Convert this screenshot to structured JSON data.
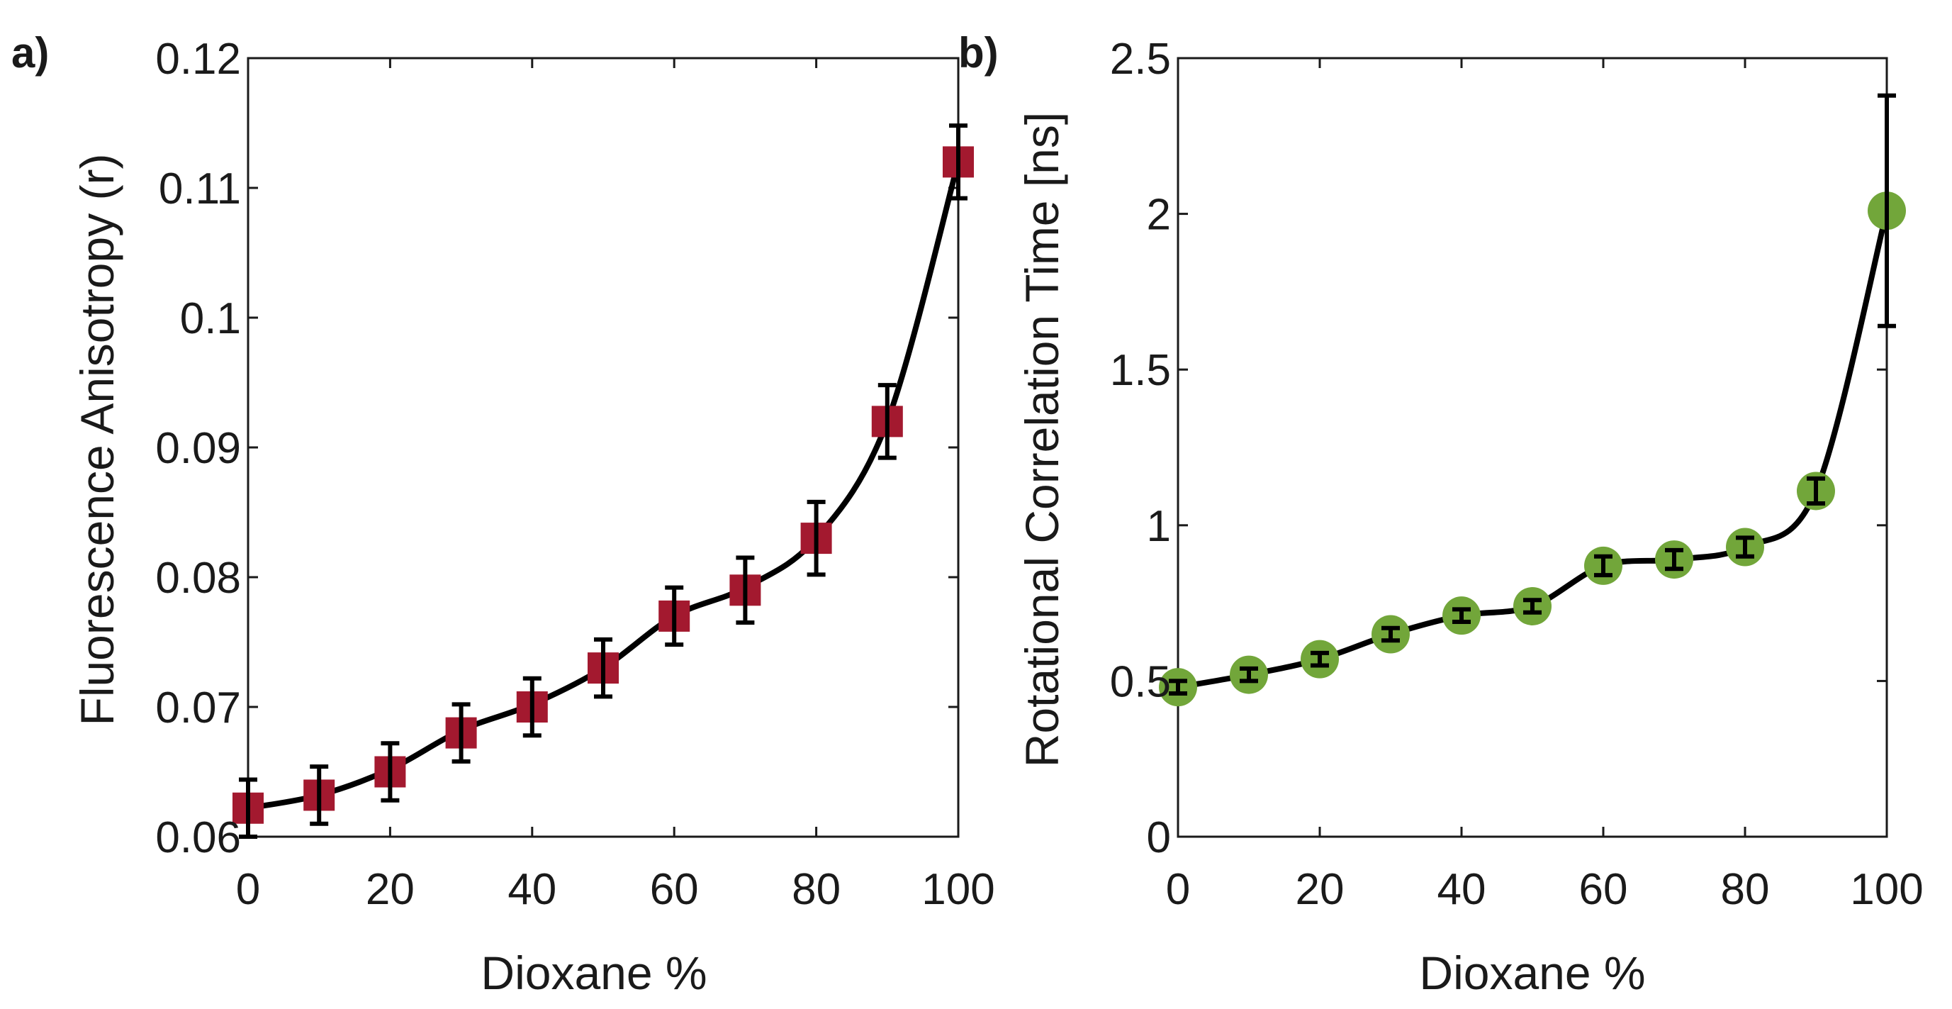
{
  "chart_data": [
    {
      "type": "scatter",
      "panel_label": "a)",
      "title": "",
      "xlabel": "Dioxane %",
      "ylabel": "Fluorescence Anisotropy (r)",
      "xlim": [
        0,
        100
      ],
      "ylim": [
        0.06,
        0.12
      ],
      "x_ticks": [
        0,
        20,
        40,
        60,
        80,
        100
      ],
      "x_tick_labels": [
        "0",
        "20",
        "40",
        "60",
        "80",
        "100"
      ],
      "y_ticks": [
        0.06,
        0.07,
        0.08,
        0.09,
        0.1,
        0.11,
        0.12
      ],
      "y_tick_labels": [
        "0.06",
        "0.07",
        "0.08",
        "0.09",
        "0.1",
        "0.11",
        "0.12"
      ],
      "marker": "square",
      "marker_color": "#a3192f",
      "grid": false,
      "series": [
        {
          "name": "Anisotropy",
          "x": [
            0,
            10,
            20,
            30,
            40,
            50,
            60,
            70,
            80,
            90,
            100
          ],
          "values": [
            0.0622,
            0.0632,
            0.065,
            0.068,
            0.07,
            0.073,
            0.077,
            0.079,
            0.083,
            0.092,
            0.112
          ],
          "error": [
            0.0022,
            0.0022,
            0.0022,
            0.0022,
            0.0022,
            0.0022,
            0.0022,
            0.0025,
            0.0028,
            0.0028,
            0.0028
          ]
        }
      ],
      "fit": {
        "x": [
          0,
          10,
          20,
          30,
          40,
          50,
          60,
          70,
          80,
          90,
          100
        ],
        "y": [
          0.0622,
          0.0632,
          0.0652,
          0.0682,
          0.0702,
          0.073,
          0.077,
          0.0792,
          0.083,
          0.092,
          0.112
        ]
      }
    },
    {
      "type": "scatter",
      "panel_label": "b)",
      "title": "",
      "xlabel": "Dioxane %",
      "ylabel": "Rotational Correlation Time [ns]",
      "xlim": [
        0,
        100
      ],
      "ylim": [
        0,
        2.5
      ],
      "x_ticks": [
        0,
        20,
        40,
        60,
        80,
        100
      ],
      "x_tick_labels": [
        "0",
        "20",
        "40",
        "60",
        "80",
        "100"
      ],
      "y_ticks": [
        0,
        0.5,
        1,
        1.5,
        2,
        2.5
      ],
      "y_tick_labels": [
        "0",
        "0.5",
        "1",
        "1.5",
        "2",
        "2.5"
      ],
      "marker": "circle",
      "marker_color": "#72a63a",
      "grid": false,
      "series": [
        {
          "name": "Rotational Correlation Time",
          "x": [
            0,
            10,
            20,
            30,
            40,
            50,
            60,
            70,
            80,
            90,
            100
          ],
          "values": [
            0.48,
            0.52,
            0.57,
            0.65,
            0.71,
            0.74,
            0.87,
            0.89,
            0.93,
            1.11,
            2.01
          ],
          "error": [
            0.02,
            0.02,
            0.02,
            0.02,
            0.02,
            0.02,
            0.03,
            0.03,
            0.03,
            0.04,
            0.37
          ]
        }
      ],
      "fit": {
        "x": [
          0,
          10,
          20,
          30,
          40,
          50,
          60,
          70,
          80,
          90,
          100
        ],
        "y": [
          0.48,
          0.52,
          0.57,
          0.65,
          0.71,
          0.74,
          0.87,
          0.89,
          0.93,
          1.11,
          2.01
        ]
      }
    }
  ]
}
